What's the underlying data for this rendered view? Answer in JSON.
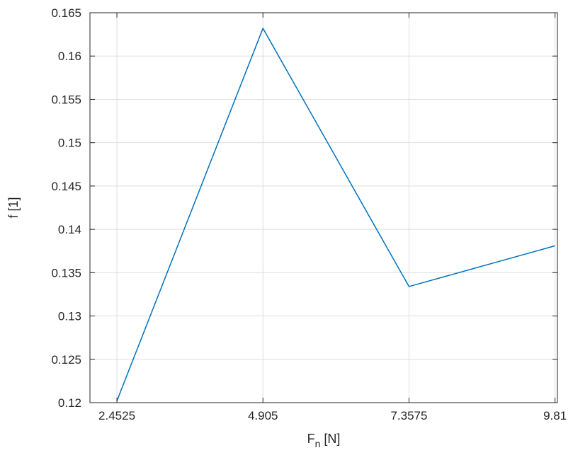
{
  "chart_data": {
    "type": "line",
    "title": "",
    "xlabel": "F",
    "xlabel_subscript": "n",
    "xlabel_unit": "[N]",
    "ylabel": "f [1]",
    "xlim": [
      2.0,
      9.85
    ],
    "ylim": [
      0.12,
      0.165
    ],
    "xticks": [
      2.4525,
      4.905,
      7.3575,
      9.81
    ],
    "xtick_labels": [
      "2.4525",
      "4.905",
      "7.3575",
      "9.81"
    ],
    "yticks": [
      0.12,
      0.125,
      0.13,
      0.135,
      0.14,
      0.145,
      0.15,
      0.155,
      0.16,
      0.165
    ],
    "ytick_labels": [
      "0.12",
      "0.125",
      "0.13",
      "0.135",
      "0.14",
      "0.145",
      "0.15",
      "0.155",
      "0.16",
      "0.165"
    ],
    "grid": true,
    "series": [
      {
        "color": "#0072bd",
        "x": [
          2.4525,
          4.905,
          7.3575,
          9.81
        ],
        "y": [
          0.1202,
          0.1632,
          0.1334,
          0.1381
        ]
      }
    ]
  }
}
